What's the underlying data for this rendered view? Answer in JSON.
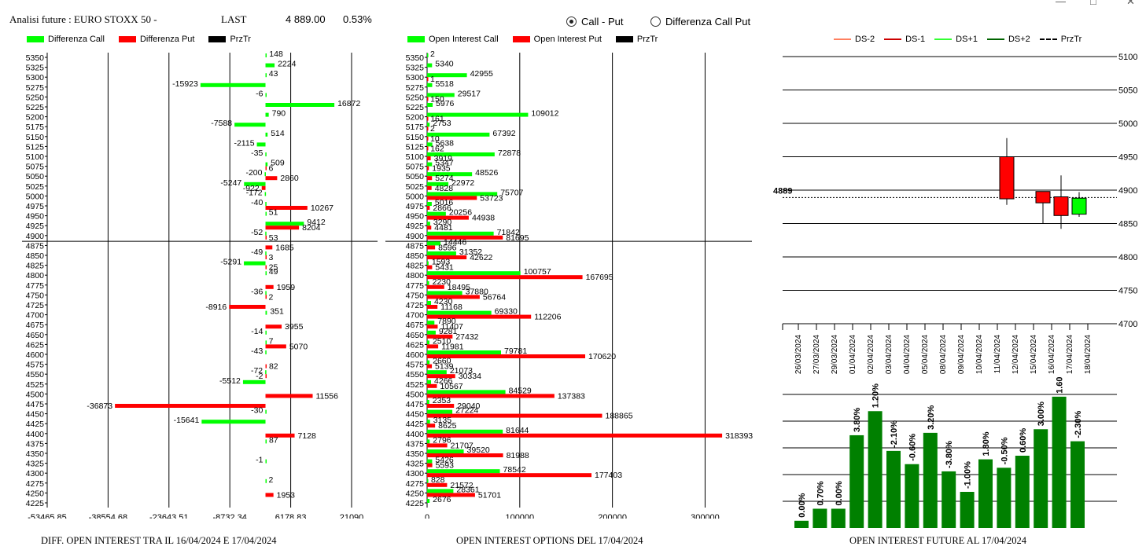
{
  "header": {
    "title": "Analisi future : EURO STOXX 50 -",
    "last_label": "LAST",
    "last_value": "4 889.00",
    "change": "0.53%"
  },
  "window": {
    "minimize": "—",
    "maximize": "□",
    "close": "✕"
  },
  "mode": {
    "options": [
      {
        "label": "Call - Put",
        "selected": true
      },
      {
        "label": "Differenza Call Put",
        "selected": false
      }
    ]
  },
  "colors": {
    "call": "#00ff00",
    "put": "#ff0000",
    "przTr": "#000000",
    "future_bar": "#008000",
    "ds_minus2": "#ff8060",
    "ds_minus1": "#cc0000",
    "ds_plus1": "#33ff33",
    "ds_plus2": "#006400"
  },
  "left_panel": {
    "legend": [
      "Differenza Call",
      "Differenza Put",
      "PrzTr"
    ],
    "caption": "DIFF. OPEN INTEREST TRA IL 16/04/2024 E 17/04/2024"
  },
  "mid_panel": {
    "legend": [
      "Open Interest Call",
      "Open Interest Put",
      "PrzTr"
    ],
    "caption": "OPEN INTEREST OPTIONS DEL 17/04/2024"
  },
  "right_panel": {
    "legend": [
      "DS-2",
      "DS-1",
      "DS+1",
      "DS+2",
      "PrzTr"
    ],
    "price_label": "4889",
    "caption": "OPEN INTEREST FUTURE AL 17/04/2024"
  },
  "chart_data": [
    {
      "type": "bar",
      "orientation": "horizontal",
      "strikes": [
        5350,
        5325,
        5300,
        5275,
        5250,
        5225,
        5200,
        5175,
        5150,
        5125,
        5100,
        5075,
        5050,
        5025,
        5000,
        4975,
        4950,
        4925,
        4900,
        4875,
        4850,
        4825,
        4800,
        4775,
        4750,
        4725,
        4700,
        4675,
        4650,
        4625,
        4600,
        4575,
        4550,
        4525,
        4500,
        4475,
        4450,
        4425,
        4400,
        4375,
        4350,
        4325,
        4300,
        4275,
        4250,
        4225
      ],
      "series": [
        {
          "name": "Differenza Call",
          "values": [
            148,
            2224,
            43,
            -15923,
            -6,
            16872,
            790,
            -7588,
            514,
            -2115,
            -35,
            509,
            -200,
            -5247,
            -172,
            -40,
            51,
            9412,
            -52,
            null,
            -49,
            -5291,
            49,
            null,
            -36,
            null,
            351,
            null,
            -14,
            7,
            -43,
            null,
            -72,
            -5512,
            null,
            null,
            -30,
            -15641,
            null,
            87,
            null,
            -1,
            null,
            2,
            null,
            null
          ]
        },
        {
          "name": "Differenza Put",
          "values": [
            null,
            null,
            null,
            null,
            null,
            null,
            null,
            null,
            null,
            null,
            null,
            6,
            2860,
            -922,
            null,
            10267,
            null,
            8204,
            53,
            1685,
            3,
            25,
            null,
            1959,
            2,
            -8916,
            null,
            3955,
            null,
            5070,
            null,
            82,
            -2,
            null,
            11556,
            -36873,
            null,
            null,
            7128,
            null,
            null,
            null,
            null,
            null,
            1953,
            null
          ]
        }
      ],
      "price_strike": 4889,
      "x_ticks": [
        "-53465.85",
        "-38554.68",
        "-23643.51",
        "-8732.34",
        "6178.83",
        "21090"
      ],
      "xlim": [
        -53465.85,
        21090
      ]
    },
    {
      "type": "bar",
      "orientation": "horizontal",
      "strikes": [
        5350,
        5325,
        5300,
        5275,
        5250,
        5225,
        5200,
        5175,
        5150,
        5125,
        5100,
        5075,
        5050,
        5025,
        5000,
        4975,
        4950,
        4925,
        4900,
        4875,
        4850,
        4825,
        4800,
        4775,
        4750,
        4725,
        4700,
        4675,
        4650,
        4625,
        4600,
        4575,
        4550,
        4525,
        4500,
        4475,
        4450,
        4425,
        4400,
        4375,
        4350,
        4325,
        4300,
        4275,
        4250,
        4225
      ],
      "series": [
        {
          "name": "Open Interest Call",
          "values": [
            2,
            5340,
            42955,
            5518,
            29517,
            5976,
            109012,
            2753,
            67392,
            5638,
            72878,
            5347,
            48526,
            22972,
            75707,
            5016,
            20256,
            3290,
            71842,
            14446,
            31352,
            1593,
            100757,
            2230,
            37880,
            4230,
            69330,
            7890,
            9281,
            2510,
            79781,
            2660,
            21073,
            4266,
            84529,
            2353,
            27224,
            3135,
            81644,
            2796,
            39520,
            5426,
            78542,
            828,
            28361,
            2676
          ]
        },
        {
          "name": "Open Interest Put",
          "values": [
            null,
            null,
            1,
            null,
            150,
            null,
            161,
            2,
            10,
            162,
            3919,
            1935,
            5274,
            4828,
            53723,
            2866,
            44938,
            4481,
            81695,
            8596,
            42622,
            5431,
            167695,
            18495,
            56764,
            11168,
            112206,
            11407,
            27432,
            11981,
            170620,
            5139,
            30334,
            10567,
            137383,
            29040,
            188865,
            8625,
            318393,
            21707,
            81988,
            5593,
            177403,
            21572,
            51701,
            null
          ]
        }
      ],
      "price_strike": 4889,
      "x_ticks": [
        "0",
        "100000",
        "200000",
        "300000"
      ],
      "xlim": [
        0,
        320000
      ]
    },
    {
      "type": "candlestick",
      "dates": [
        "26/03/2024",
        "27/03/2024",
        "29/03/2024",
        "01/04/2024",
        "02/04/2024",
        "03/04/2024",
        "04/04/2024",
        "05/04/2024",
        "08/04/2024",
        "09/04/2024",
        "10/04/2024",
        "11/04/2024",
        "12/04/2024",
        "15/04/2024",
        "16/04/2024",
        "17/04/2024",
        "18/04/2024"
      ],
      "candles": [
        {
          "date": "12/04/2024",
          "open": 4950,
          "close": 4887,
          "high": 4978,
          "low": 4878,
          "color": "#ff0000"
        },
        {
          "date": "16/04/2024",
          "open": 4898,
          "close": 4881,
          "high": 4898,
          "low": 4850,
          "color": "#ff0000"
        },
        {
          "date": "17/04/2024",
          "open": 4890,
          "close": 4862,
          "high": 4922,
          "low": 4842,
          "color": "#ff0000"
        },
        {
          "date": "18/04/2024",
          "open": 4864,
          "close": 4888,
          "high": 4897,
          "low": 4860,
          "color": "#00ff00"
        }
      ],
      "y_ticks": [
        4700,
        4750,
        4800,
        4850,
        4900,
        4950,
        5000,
        5050,
        5100
      ],
      "ylim": [
        4700,
        5100
      ],
      "przTr": 4889
    },
    {
      "type": "bar",
      "labels": [
        "0.00%",
        "0.70%",
        "0.00%",
        "3.80%",
        "1.20%",
        "-2.10%",
        "-0.60%",
        "3.20%",
        "-3.80%",
        "-1.00%",
        "1.80%",
        "-0.50%",
        "0.60%",
        "3.00%",
        "1.60%",
        "-2.30%"
      ],
      "values": [
        0.6,
        1.6,
        1.6,
        7.7,
        9.7,
        6.4,
        5.3,
        7.9,
        4.7,
        3.0,
        5.7,
        5.0,
        6.0,
        8.2,
        10.9,
        7.2
      ],
      "ylim": [
        0,
        12
      ]
    }
  ]
}
